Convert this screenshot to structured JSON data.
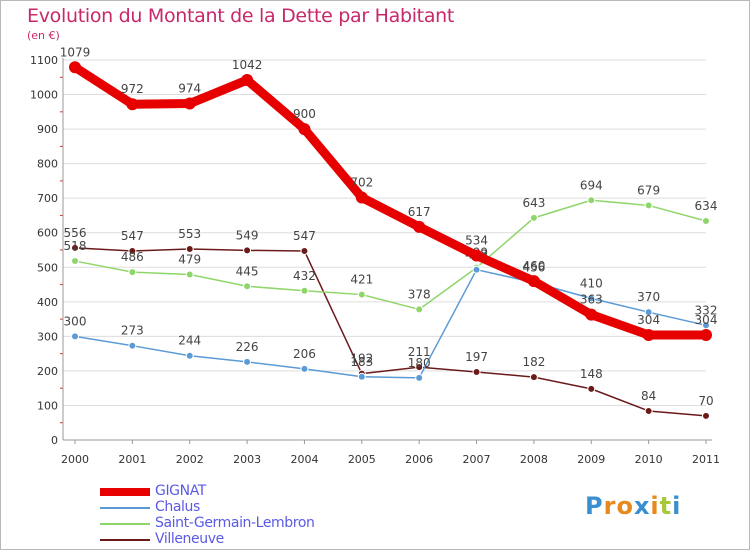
{
  "title": "Evolution du Montant de la Dette par Habitant",
  "unit_label": "(en €)",
  "logo": {
    "letters": [
      "P",
      "r",
      "o",
      "x",
      "i",
      "t",
      "i"
    ],
    "colors": [
      "#3a8fd0",
      "#e8891d",
      "#e8891d",
      "#3a8fd0",
      "#e8891d",
      "#a8c83c",
      "#3a8fd0"
    ]
  },
  "chart_data": {
    "type": "line",
    "x": [
      "2000",
      "2001",
      "2002",
      "2003",
      "2004",
      "2005",
      "2006",
      "2007",
      "2008",
      "2009",
      "2010",
      "2011"
    ],
    "yticks": [
      "0",
      "100",
      "200",
      "300",
      "400",
      "500",
      "600",
      "700",
      "800",
      "900",
      "1000",
      "1100"
    ],
    "ylim": [
      0,
      1100
    ],
    "grid": "horizontal",
    "legend_position": "bottom-left",
    "series": [
      {
        "name": "Villeneuve",
        "color": "#6b1a1a",
        "values": [
          556,
          547,
          553,
          549,
          547,
          192,
          211,
          197,
          182,
          148,
          84,
          70
        ],
        "labels": [
          "556",
          "547",
          "553",
          "549",
          "547",
          "192",
          "211",
          "197",
          "182",
          "148",
          "84",
          "70"
        ]
      },
      {
        "name": "Saint-Germain-Lembron",
        "color": "#8fd66a",
        "values": [
          518,
          486,
          479,
          445,
          432,
          421,
          378,
          499,
          643,
          694,
          679,
          634
        ],
        "labels": [
          "518",
          "486",
          "479",
          "445",
          "432",
          "421",
          "378",
          "499",
          "643",
          "694",
          "679",
          "634"
        ]
      },
      {
        "name": "Chalus",
        "color": "#5b9bd5",
        "values": [
          300,
          273,
          244,
          226,
          206,
          183,
          180,
          493,
          456,
          410,
          370,
          332
        ],
        "labels": [
          "300",
          "273",
          "244",
          "226",
          "206",
          "183",
          "180",
          "493",
          "456",
          "410",
          "370",
          "332"
        ]
      },
      {
        "name": "GIGNAT",
        "color": "#e60000",
        "values": [
          1079,
          972,
          974,
          1042,
          900,
          702,
          617,
          534,
          460,
          363,
          304,
          304
        ],
        "labels": [
          "1079",
          "972",
          "974",
          "1042",
          "900",
          "702",
          "617",
          "534",
          "460",
          "363",
          "304",
          "304"
        ]
      }
    ],
    "legend_order": [
      "GIGNAT",
      "Chalus",
      "Saint-Germain-Lembron",
      "Villeneuve"
    ],
    "legend_colors": [
      "#e60000",
      "#5b9bd5",
      "#8fd66a",
      "#6b1a1a"
    ]
  }
}
